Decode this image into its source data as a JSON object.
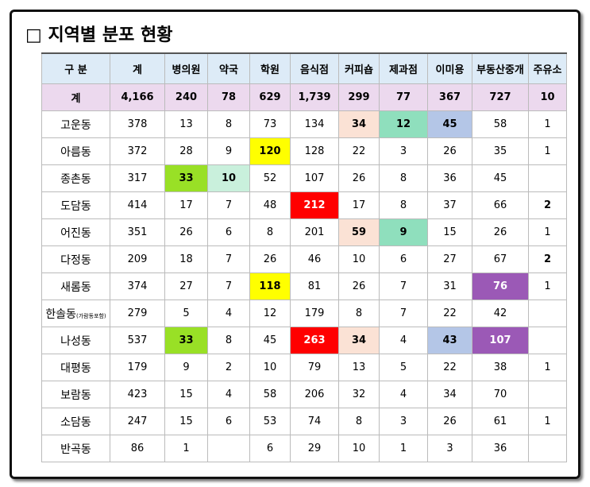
{
  "title": "□ 지역별 분포 현황",
  "table": {
    "header": [
      "구 분",
      "계",
      "병의원",
      "약국",
      "학원",
      "음식점",
      "커피숍",
      "제과점",
      "이미용",
      "부동산중개",
      "주유소"
    ],
    "total": {
      "label": "계",
      "values": [
        "4,166",
        240,
        78,
        629,
        "1,739",
        299,
        77,
        367,
        727,
        10
      ]
    },
    "rows": [
      {
        "name": "고운동",
        "values": [
          378,
          13,
          8,
          73,
          134,
          34,
          12,
          45,
          58,
          1
        ]
      },
      {
        "name": "아름동",
        "values": [
          372,
          28,
          9,
          120,
          128,
          22,
          3,
          26,
          35,
          1
        ]
      },
      {
        "name": "종촌동",
        "values": [
          317,
          33,
          10,
          52,
          107,
          26,
          8,
          36,
          45,
          null
        ]
      },
      {
        "name": "도담동",
        "values": [
          414,
          17,
          7,
          48,
          212,
          17,
          8,
          37,
          66,
          2
        ]
      },
      {
        "name": "어진동",
        "values": [
          351,
          26,
          6,
          8,
          201,
          59,
          9,
          15,
          26,
          1
        ]
      },
      {
        "name": "다정동",
        "values": [
          209,
          18,
          7,
          26,
          46,
          10,
          6,
          27,
          67,
          2
        ]
      },
      {
        "name": "새롬동",
        "values": [
          374,
          27,
          7,
          118,
          81,
          26,
          7,
          31,
          76,
          1
        ]
      },
      {
        "name": "한솔동",
        "note": "(가람동포함)",
        "values": [
          279,
          5,
          4,
          12,
          179,
          8,
          7,
          22,
          42,
          null
        ]
      },
      {
        "name": "나성동",
        "values": [
          537,
          33,
          8,
          45,
          263,
          34,
          4,
          43,
          107,
          null
        ]
      },
      {
        "name": "대평동",
        "values": [
          179,
          9,
          2,
          10,
          79,
          13,
          5,
          22,
          38,
          1
        ]
      },
      {
        "name": "보람동",
        "values": [
          423,
          15,
          4,
          58,
          206,
          32,
          4,
          34,
          70,
          null
        ]
      },
      {
        "name": "소담동",
        "values": [
          247,
          15,
          6,
          53,
          74,
          8,
          3,
          26,
          61,
          1
        ]
      },
      {
        "name": "반곡동",
        "values": [
          86,
          1,
          null,
          6,
          29,
          10,
          1,
          3,
          36,
          null
        ]
      }
    ]
  }
}
